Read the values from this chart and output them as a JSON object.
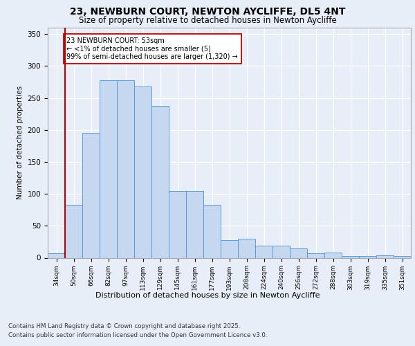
{
  "title1": "23, NEWBURN COURT, NEWTON AYCLIFFE, DL5 4NT",
  "title2": "Size of property relative to detached houses in Newton Aycliffe",
  "xlabel": "Distribution of detached houses by size in Newton Aycliffe",
  "ylabel": "Number of detached properties",
  "categories": [
    "34sqm",
    "50sqm",
    "66sqm",
    "82sqm",
    "97sqm",
    "113sqm",
    "129sqm",
    "145sqm",
    "161sqm",
    "177sqm",
    "193sqm",
    "208sqm",
    "224sqm",
    "240sqm",
    "256sqm",
    "272sqm",
    "288sqm",
    "303sqm",
    "319sqm",
    "335sqm",
    "351sqm"
  ],
  "values": [
    7,
    83,
    195,
    278,
    278,
    268,
    238,
    104,
    104,
    83,
    28,
    30,
    19,
    19,
    15,
    7,
    8,
    3,
    3,
    4,
    3
  ],
  "bar_color": "#c5d8f0",
  "bar_edge_color": "#5b9bd5",
  "vline_x": 0.5,
  "vline_color": "#c00000",
  "annotation_text": "23 NEWBURN COURT: 53sqm\n← <1% of detached houses are smaller (5)\n99% of semi-detached houses are larger (1,320) →",
  "annotation_box_color": "white",
  "annotation_box_edge_color": "#c00000",
  "footer1": "Contains HM Land Registry data © Crown copyright and database right 2025.",
  "footer2": "Contains public sector information licensed under the Open Government Licence v3.0.",
  "bg_color": "#e8eef8",
  "plot_bg_color": "#e8eef8",
  "ylim": [
    0,
    360
  ],
  "yticks": [
    0,
    50,
    100,
    150,
    200,
    250,
    300,
    350
  ]
}
